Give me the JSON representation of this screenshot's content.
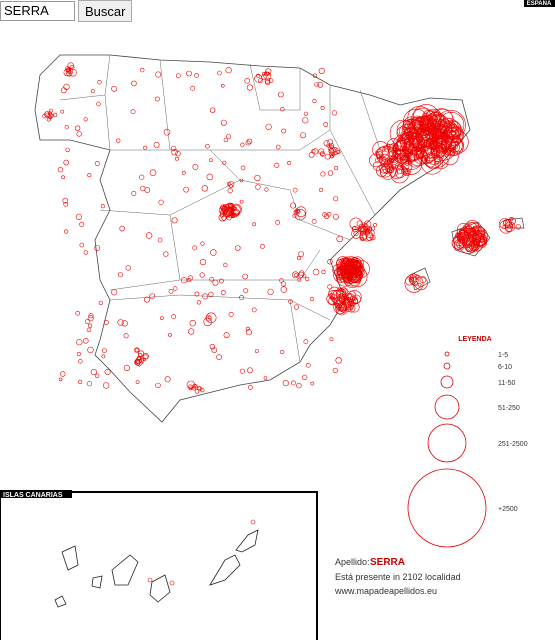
{
  "search": {
    "query": "SERRA",
    "button": "Buscar"
  },
  "map": {
    "country_label": "ESPAÑA",
    "canarias_label": "ISLAS CANARIAS"
  },
  "legend": {
    "title": "LEYENDA",
    "items": [
      "1-5",
      "6-10",
      "11-50",
      "51-250",
      "251-2500",
      "+2500"
    ]
  },
  "info": {
    "surname_label": "Apellido:",
    "surname": "SERRA",
    "presence": "Está presente in 2102 localidad",
    "website": "www.mapadeapellidos.eu"
  }
}
